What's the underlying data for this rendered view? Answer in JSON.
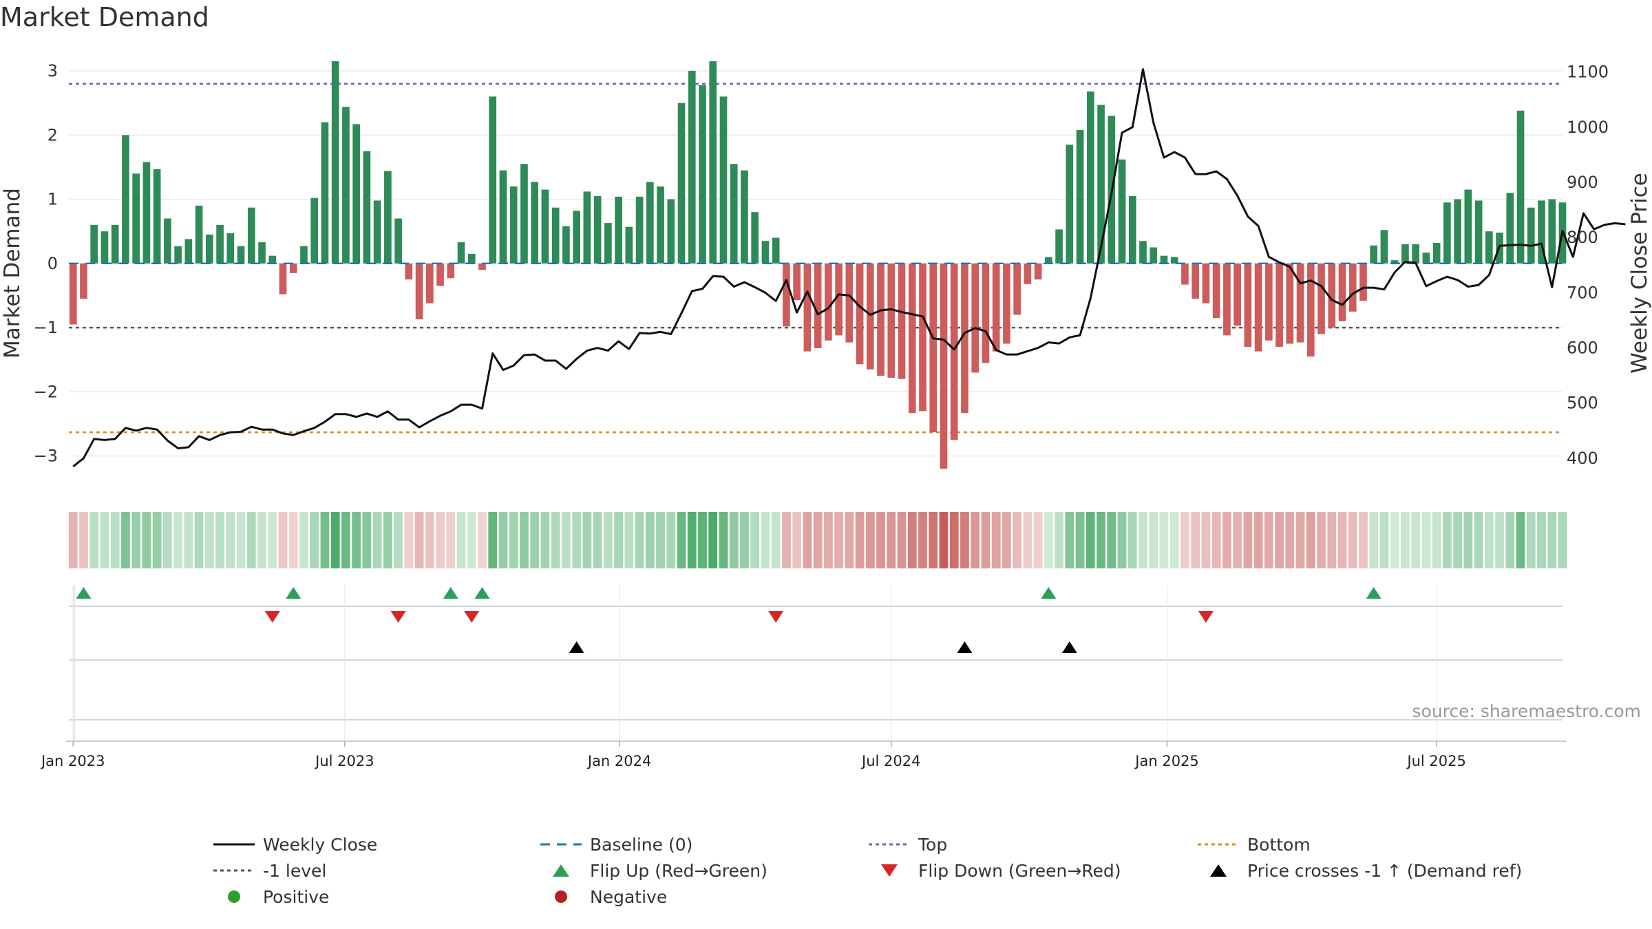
{
  "chart_data": {
    "type": "bar+line",
    "title": "Market Demand",
    "ylabel_left": "Market Demand",
    "ylabel_right": "Weekly Close Price",
    "source": "source: sharemaestro.com",
    "left_axis": {
      "ylim": [
        -3.55,
        3.3
      ],
      "ticks": [
        3,
        2,
        1,
        0,
        -1,
        -2,
        -3
      ],
      "tick_labels": [
        "3",
        "2",
        "1",
        "0",
        "−1",
        "−2",
        "−3"
      ]
    },
    "right_axis": {
      "ylim": [
        340,
        1137
      ],
      "ticks": [
        1100,
        1000,
        900,
        800,
        700,
        600,
        500,
        400
      ],
      "tick_labels": [
        "1100",
        "1000",
        "900",
        "800",
        "700",
        "600",
        "500",
        "400"
      ]
    },
    "x_axis": {
      "start_week_index": -1,
      "end_week_index": 142,
      "ticks": [
        {
          "label": "Jan 2023",
          "week": 0
        },
        {
          "label": "Jul 2023",
          "week": 25.9
        },
        {
          "label": "Jan 2024",
          "week": 52.1
        },
        {
          "label": "Jul 2024",
          "week": 78
        },
        {
          "label": "Jan 2025",
          "week": 104.3
        },
        {
          "label": "Jul 2025",
          "week": 130
        }
      ]
    },
    "reference_levels": {
      "top": 2.8,
      "minus_one": -1.0,
      "bottom": -2.63,
      "baseline": 0
    },
    "demand_weekly": [
      -0.95,
      -0.55,
      0.6,
      0.5,
      0.6,
      2.0,
      1.4,
      1.58,
      1.47,
      0.7,
      0.27,
      0.38,
      0.9,
      0.45,
      0.6,
      0.47,
      0.27,
      0.87,
      0.33,
      0.12,
      -0.48,
      -0.15,
      0.27,
      1.02,
      2.2,
      3.15,
      2.44,
      2.17,
      1.75,
      0.98,
      1.44,
      0.7,
      -0.25,
      -0.87,
      -0.62,
      -0.35,
      -0.23,
      0.33,
      0.15,
      -0.1,
      2.6,
      1.45,
      1.2,
      1.55,
      1.27,
      1.15,
      0.87,
      0.58,
      0.82,
      1.12,
      1.05,
      0.63,
      1.04,
      0.57,
      1.04,
      1.27,
      1.2,
      1.0,
      2.5,
      3.0,
      2.78,
      3.15,
      2.6,
      1.55,
      1.45,
      0.8,
      0.35,
      0.4,
      -0.98,
      -0.57,
      -1.37,
      -1.32,
      -1.2,
      -1.12,
      -1.23,
      -1.57,
      -1.65,
      -1.75,
      -1.78,
      -1.8,
      -2.33,
      -2.3,
      -2.63,
      -3.2,
      -2.75,
      -2.33,
      -1.7,
      -1.55,
      -1.37,
      -1.25,
      -0.8,
      -0.32,
      -0.25,
      0.1,
      0.53,
      1.85,
      2.08,
      2.68,
      2.47,
      2.3,
      1.62,
      1.05,
      0.35,
      0.25,
      0.12,
      0.1,
      -0.33,
      -0.55,
      -0.62,
      -0.85,
      -1.12,
      -0.97,
      -1.3,
      -1.37,
      -1.2,
      -1.3,
      -1.25,
      -1.23,
      -1.45,
      -1.1,
      -1.0,
      -0.9,
      -0.75,
      -0.58,
      0.28,
      0.52,
      0.05,
      0.3,
      0.3,
      0.17,
      0.32,
      0.95,
      1.0,
      1.15,
      0.98,
      0.5,
      0.48,
      1.1,
      2.38,
      0.87,
      0.98,
      1.0,
      0.95
    ],
    "weekly_close": [
      385,
      400,
      435,
      433,
      435,
      455,
      450,
      455,
      452,
      432,
      418,
      420,
      440,
      433,
      442,
      447,
      448,
      457,
      452,
      452,
      445,
      442,
      449,
      455,
      466,
      480,
      480,
      475,
      481,
      475,
      485,
      470,
      470,
      456,
      467,
      477,
      485,
      497,
      497,
      490,
      590,
      560,
      568,
      587,
      588,
      577,
      577,
      562,
      580,
      595,
      600,
      595,
      612,
      598,
      627,
      626,
      629,
      625,
      663,
      703,
      707,
      730,
      729,
      711,
      719,
      710,
      700,
      685,
      723,
      664,
      702,
      661,
      672,
      697,
      695,
      675,
      660,
      668,
      670,
      665,
      661,
      657,
      617,
      615,
      597,
      627,
      636,
      630,
      596,
      588,
      588,
      594,
      600,
      610,
      608,
      619,
      623,
      690,
      783,
      880,
      990,
      1000,
      1105,
      1008,
      945,
      955,
      945,
      915,
      915,
      920,
      906,
      876,
      838,
      821,
      765,
      755,
      747,
      717,
      722,
      712,
      687,
      678,
      698,
      709,
      709,
      706,
      737,
      756,
      754,
      712,
      721,
      729,
      723,
      711,
      714,
      732,
      785,
      786,
      787,
      785,
      789,
      710,
      812,
      765,
      844,
      815,
      823,
      826,
      824
    ],
    "marker_rows": [
      {
        "name": "flip-up",
        "legend": "Flip Up (Red→Green)",
        "shape": "triangle-up",
        "color": "#2ca05a",
        "weeks": [
          1,
          21,
          36,
          39,
          93,
          124
        ]
      },
      {
        "name": "flip-down",
        "legend": "Flip Down (Green→Red)",
        "shape": "triangle-down",
        "color": "#d62728",
        "weeks": [
          19,
          31,
          38,
          67,
          108
        ]
      },
      {
        "name": "price-cross",
        "legend": "Price crosses -1 ↑ (Demand ref)",
        "shape": "triangle-up",
        "color": "#000000",
        "weeks": [
          48,
          85,
          95
        ]
      }
    ],
    "legend": [
      {
        "label": "Weekly Close",
        "kind": "line-solid",
        "color": "#111111"
      },
      {
        "label": "Baseline (0)",
        "kind": "line-dashed",
        "color": "#1f77b4"
      },
      {
        "label": "Top",
        "kind": "line-dotted",
        "color": "#6666cc"
      },
      {
        "label": "Bottom",
        "kind": "line-dotted",
        "color": "#e08a1e"
      },
      {
        "label": "-1 level",
        "kind": "line-dotted",
        "color": "#555555"
      },
      {
        "label": "Flip Up (Red→Green)",
        "kind": "triangle-up",
        "color": "#2ca05a"
      },
      {
        "label": "Flip Down (Green→Red)",
        "kind": "triangle-down",
        "color": "#d62728"
      },
      {
        "label": "Price crosses -1 ↑ (Demand ref)",
        "kind": "triangle-up",
        "color": "#000000"
      },
      {
        "label": "Positive",
        "kind": "dot",
        "color": "#2ca02c"
      },
      {
        "label": "Negative",
        "kind": "dot",
        "color": "#b22222"
      }
    ],
    "colors": {
      "positive_bar": "#2e8b57",
      "negative_bar": "#cd5c5c",
      "price_line": "#111111",
      "top_line": "#6666cc",
      "bottom_line": "#e08a1e",
      "minus_one_line": "#555555",
      "baseline": "#1f77b4",
      "grid": "#e6e6e6",
      "heat_positive": "#3aa35a",
      "heat_negative": "#c0504d"
    }
  }
}
